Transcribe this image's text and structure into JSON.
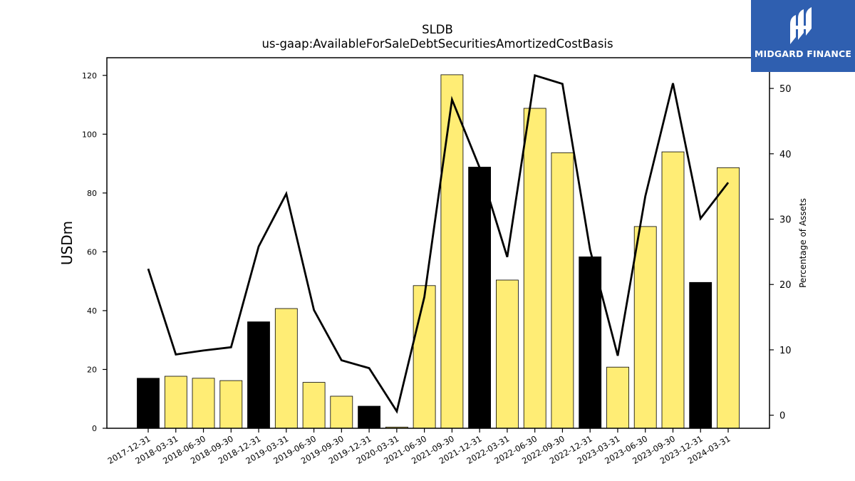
{
  "chart_data": {
    "type": "bar+line",
    "title": "SLDB",
    "subtitle": "us-gaap:AvailableForSaleDebtSecuritiesAmortizedCostBasis",
    "ylabel": "USDm",
    "ylabel_right": "Percentage of Assets",
    "ylim": [
      0,
      126
    ],
    "ylim_right": [
      -2,
      54.7
    ],
    "yticks": [
      0,
      20,
      40,
      60,
      80,
      100,
      120
    ],
    "yticks_right": [
      0,
      10,
      20,
      30,
      40,
      50
    ],
    "categories": [
      "2017-12-31",
      "2018-03-31",
      "2018-06-30",
      "2018-09-30",
      "2018-12-31",
      "2019-03-31",
      "2019-06-30",
      "2019-09-30",
      "2019-12-31",
      "2020-03-31",
      "2021-06-30",
      "2021-09-30",
      "2021-12-31",
      "2022-03-31",
      "2022-06-30",
      "2022-09-30",
      "2022-12-31",
      "2023-03-31",
      "2023-06-30",
      "2023-09-30",
      "2023-12-31",
      "2024-03-31"
    ],
    "series": [
      {
        "type": "bar",
        "axis": "left",
        "values": [
          17,
          17.7,
          17,
          16.2,
          36.2,
          40.7,
          15.6,
          10.9,
          7.5,
          0.4,
          48.5,
          120.2,
          88.8,
          50.4,
          108.8,
          93.7,
          58.3,
          20.8,
          68.6,
          94,
          49.6,
          88.6
        ],
        "highlight": [
          true,
          false,
          false,
          false,
          true,
          false,
          false,
          false,
          true,
          false,
          false,
          false,
          true,
          false,
          false,
          false,
          true,
          false,
          false,
          false,
          true,
          false
        ]
      },
      {
        "type": "line",
        "axis": "right",
        "values": [
          22.4,
          9.3,
          9.9,
          10.4,
          25.8,
          33.9,
          16.1,
          8.4,
          7.2,
          0.6,
          18.1,
          48.3,
          37.9,
          24.2,
          52,
          50.7,
          25.3,
          9.1,
          33.5,
          50.8,
          30.1,
          35.6
        ]
      }
    ],
    "colors": {
      "bar": "#ffed75",
      "bar_highlight": "#000000",
      "line": "#000000"
    },
    "grid": false
  },
  "logo": {
    "text": "MIDGARD FINANCE",
    "icon": "midgard-logo-icon",
    "background": "#2f5fb0"
  }
}
